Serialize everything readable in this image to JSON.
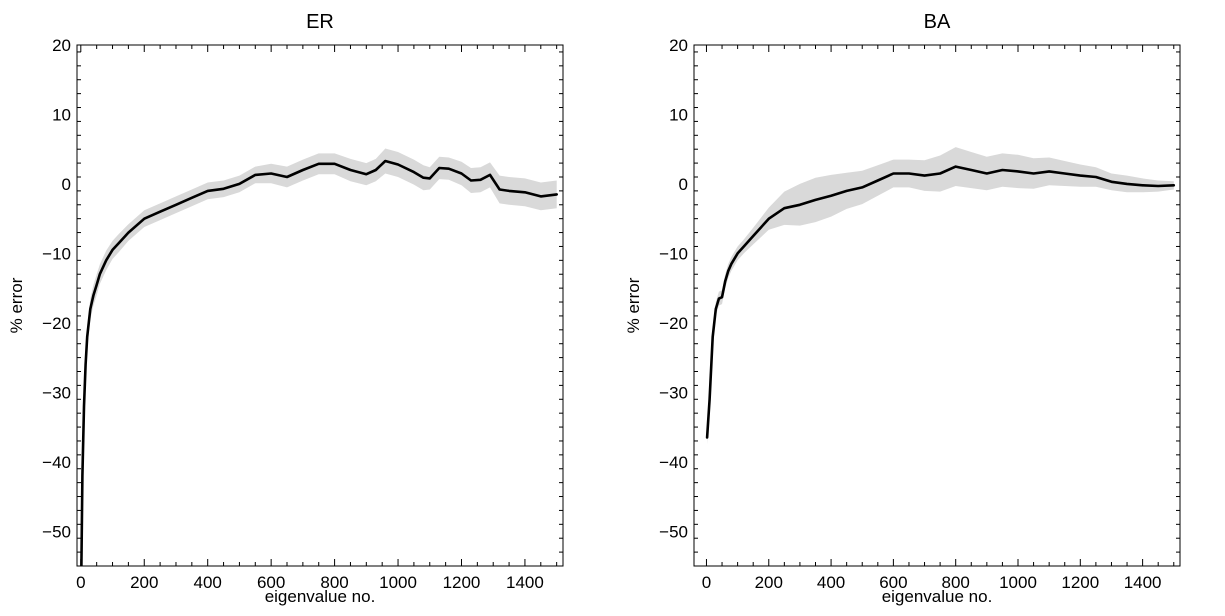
{
  "chart_data": [
    {
      "type": "line",
      "title": "ER",
      "xlabel": "eigenvalue no.",
      "ylabel": "% error",
      "xlim": [
        -12,
        1520
      ],
      "ylim": [
        -55,
        20
      ],
      "xticks": [
        "0",
        "200",
        "400",
        "600",
        "800",
        "1000",
        "1200",
        "1400"
      ],
      "yticks": [
        "20",
        "10",
        "0",
        "−10",
        "−20",
        "−30",
        "−40",
        "−50"
      ],
      "grid": false,
      "series": [
        {
          "x": [
            2,
            5,
            10,
            15,
            20,
            30,
            40,
            50,
            60,
            80,
            100,
            120,
            150,
            200,
            250,
            300,
            350,
            400,
            450,
            500,
            550,
            600,
            650,
            700,
            750,
            800,
            850,
            900,
            930,
            960,
            1000,
            1050,
            1080,
            1100,
            1130,
            1160,
            1200,
            1230,
            1260,
            1290,
            1320,
            1350,
            1400,
            1450,
            1500
          ],
          "y": [
            -55,
            -42,
            -32,
            -26,
            -22,
            -18,
            -16,
            -14.5,
            -13,
            -11,
            -9.5,
            -8.5,
            -7,
            -5,
            -4,
            -3,
            -2,
            -1,
            -0.7,
            0,
            1.3,
            1.5,
            1,
            2,
            2.9,
            2.9,
            2,
            1.4,
            2,
            3.3,
            2.8,
            1.7,
            0.9,
            0.8,
            2.3,
            2.2,
            1.5,
            0.5,
            0.6,
            1.3,
            -0.8,
            -1,
            -1.2,
            -1.8,
            -1.5
          ],
          "band": [
            1.5,
            1.5,
            1.5,
            1.5,
            1.5,
            1.5,
            1.5,
            1.5,
            1.4,
            1.4,
            1.3,
            1.3,
            1.2,
            1.2,
            1.2,
            1.2,
            1.2,
            1.2,
            1.2,
            1.2,
            1.2,
            1.4,
            1.5,
            1.5,
            1.5,
            1.5,
            1.6,
            1.6,
            1.6,
            1.8,
            1.8,
            1.8,
            1.8,
            1.6,
            1.6,
            1.6,
            1.7,
            1.8,
            1.8,
            1.8,
            2.0,
            2.0,
            2.0,
            2.0,
            2.0
          ]
        }
      ]
    },
    {
      "type": "line",
      "title": "BA",
      "xlabel": "eigenvalue no.",
      "ylabel": "% error",
      "xlim": [
        -40,
        1520
      ],
      "ylim": [
        -55,
        20
      ],
      "xticks": [
        "0",
        "200",
        "400",
        "600",
        "800",
        "1000",
        "1200",
        "1400"
      ],
      "yticks": [
        "20",
        "10",
        "0",
        "−10",
        "−20",
        "−30",
        "−40",
        "−50"
      ],
      "grid": false,
      "series": [
        {
          "x": [
            2,
            10,
            20,
            30,
            40,
            50,
            60,
            70,
            80,
            100,
            120,
            150,
            200,
            250,
            300,
            350,
            400,
            450,
            500,
            550,
            600,
            650,
            700,
            750,
            800,
            850,
            900,
            950,
            1000,
            1050,
            1100,
            1150,
            1200,
            1250,
            1300,
            1350,
            1400,
            1450,
            1500
          ],
          "y": [
            -36.5,
            -31,
            -22,
            -18,
            -16.5,
            -16.3,
            -14,
            -12.5,
            -11.5,
            -10,
            -9,
            -7.5,
            -5,
            -3.5,
            -3,
            -2.3,
            -1.7,
            -1,
            -0.5,
            0.5,
            1.5,
            1.5,
            1.2,
            1.5,
            2.5,
            2,
            1.5,
            2,
            1.8,
            1.5,
            1.8,
            1.5,
            1.2,
            1,
            0.3,
            0,
            -0.2,
            -0.3,
            -0.2
          ],
          "band": [
            1.0,
            1.0,
            1.0,
            1.0,
            1.0,
            1.0,
            1.0,
            1.0,
            1.0,
            1.0,
            1.0,
            1.2,
            1.6,
            2.4,
            3.0,
            3.2,
            3.0,
            2.6,
            2.4,
            2.2,
            2.0,
            2.0,
            2.2,
            2.6,
            2.8,
            2.6,
            2.4,
            2.4,
            2.4,
            2.2,
            2.0,
            1.8,
            1.6,
            1.4,
            1.2,
            1.2,
            1.0,
            0.8,
            0.6
          ]
        }
      ]
    }
  ]
}
